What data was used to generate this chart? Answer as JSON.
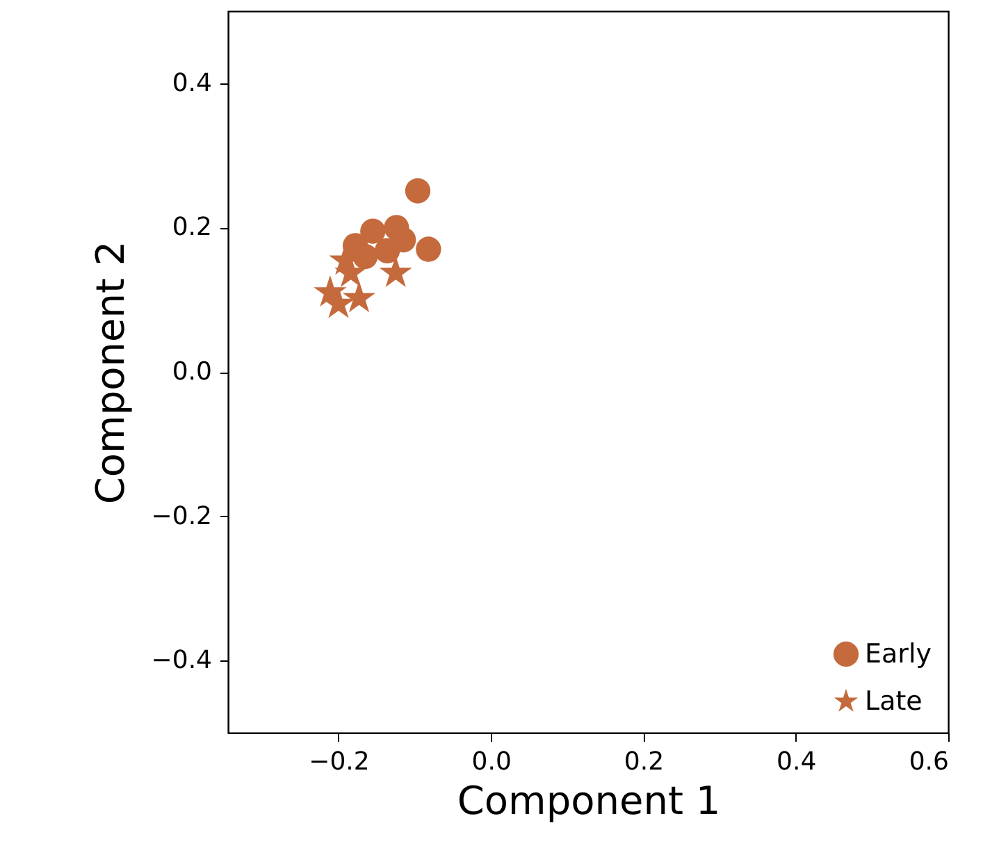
{
  "chart_data": {
    "type": "scatter",
    "xlabel": "Component 1",
    "ylabel": "Component 2",
    "xlim": [
      -0.345,
      0.6
    ],
    "xticks": [
      {
        "value": -0.2,
        "label": "−0.2"
      },
      {
        "value": 0,
        "label": "0.0"
      },
      0.2,
      0.4,
      0.6
    ],
    "ylim": [
      -0.5,
      0.5
    ],
    "yticks": [
      {
        "value": -0.4,
        "label": "−0.4"
      },
      {
        "value": -0.2,
        "label": "−0.2"
      },
      {
        "value": 0,
        "label": "0.0"
      },
      0.2,
      0.4
    ],
    "grid": false,
    "legend": "bottom right",
    "series": [
      {
        "name": "Early",
        "color": "#c46a3c",
        "marker": "circle",
        "x": [
          -0.096,
          -0.082,
          -0.155,
          -0.124,
          -0.115,
          -0.178,
          -0.136,
          -0.165
        ],
        "values": [
          0.251,
          0.17,
          0.195,
          0.2,
          0.183,
          0.175,
          0.168,
          0.16
        ]
      },
      {
        "name": "Late",
        "color": "#c46a3c",
        "marker": "star",
        "x": [
          -0.211,
          -0.2,
          -0.173,
          -0.125,
          -0.191,
          -0.184
        ],
        "values": [
          0.11,
          0.094,
          0.102,
          0.137,
          0.154,
          0.137
        ]
      }
    ]
  }
}
